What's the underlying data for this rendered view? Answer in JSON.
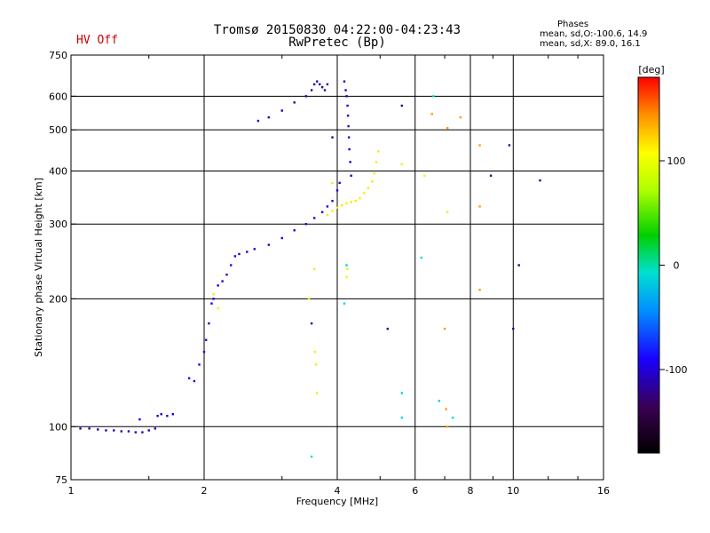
{
  "status": {
    "hv": "HV Off"
  },
  "header": {
    "title_line1": "Tromsø 20150830 04:22:00-04:23:43",
    "title_line2": "RwPretec (Bp)"
  },
  "phases": {
    "title": "Phases",
    "line1": "mean, sd,O:-100.6, 14.9",
    "line2": "mean, sd,X:  89.0, 16.1"
  },
  "colorbar": {
    "unit": "[deg]",
    "ticks": [
      100,
      0,
      -100
    ],
    "range": [
      -180,
      180
    ]
  },
  "chart_data": {
    "type": "scatter",
    "xlabel": "Frequency [MHz]",
    "ylabel": "Stationary phase Virtual Height [km]",
    "x_scale": "log2",
    "y_scale": "log",
    "xlim": [
      1,
      16
    ],
    "ylim": [
      75,
      750
    ],
    "x_ticks": [
      1,
      2,
      4,
      6,
      8,
      10,
      16
    ],
    "y_ticks": [
      75,
      100,
      200,
      300,
      400,
      500,
      600,
      750
    ],
    "grid": true,
    "color_meaning": "phase [deg]",
    "series": [
      {
        "values": [
          [
            1.05,
            99
          ],
          [
            1.1,
            99
          ],
          [
            1.15,
            98.5
          ],
          [
            1.2,
            98
          ],
          [
            1.25,
            98
          ],
          [
            1.3,
            97.5
          ],
          [
            1.35,
            97.5
          ],
          [
            1.4,
            97
          ],
          [
            1.45,
            97
          ],
          [
            1.5,
            98
          ],
          [
            1.55,
            99
          ],
          [
            1.57,
            106
          ],
          [
            1.6,
            107
          ],
          [
            1.65,
            106
          ],
          [
            1.7,
            107
          ]
        ],
        "phase": -110
      },
      {
        "values": [
          [
            1.43,
            104
          ],
          [
            1.85,
            130
          ],
          [
            1.9,
            128
          ],
          [
            1.95,
            140
          ],
          [
            2.0,
            150
          ],
          [
            2.02,
            160
          ],
          [
            2.05,
            175
          ],
          [
            2.08,
            195
          ],
          [
            2.1,
            200
          ],
          [
            2.15,
            215
          ],
          [
            2.2,
            220
          ],
          [
            2.25,
            228
          ],
          [
            2.3,
            240
          ],
          [
            2.35,
            252
          ],
          [
            2.4,
            255
          ],
          [
            2.5,
            258
          ],
          [
            2.6,
            262
          ],
          [
            2.8,
            268
          ],
          [
            3.0,
            278
          ],
          [
            3.2,
            290
          ],
          [
            3.4,
            300
          ],
          [
            3.55,
            310
          ],
          [
            3.7,
            320
          ],
          [
            3.8,
            330
          ],
          [
            3.9,
            340
          ],
          [
            4.0,
            360
          ],
          [
            4.05,
            375
          ]
        ],
        "phase": -100
      },
      {
        "values": [
          [
            2.65,
            525
          ],
          [
            2.8,
            535
          ],
          [
            3.0,
            555
          ],
          [
            3.2,
            580
          ],
          [
            3.4,
            600
          ],
          [
            3.5,
            620
          ],
          [
            3.55,
            640
          ],
          [
            3.6,
            650
          ],
          [
            3.65,
            640
          ],
          [
            3.7,
            630
          ],
          [
            3.75,
            620
          ],
          [
            3.8,
            640
          ]
        ],
        "phase": -115
      },
      {
        "values": [
          [
            4.15,
            650
          ],
          [
            4.18,
            620
          ],
          [
            4.2,
            600
          ],
          [
            4.22,
            570
          ],
          [
            4.23,
            540
          ],
          [
            4.24,
            510
          ],
          [
            4.25,
            480
          ],
          [
            4.26,
            450
          ],
          [
            4.28,
            420
          ],
          [
            4.3,
            390
          ]
        ],
        "phase": -108
      },
      {
        "values": [
          [
            3.8,
            315
          ],
          [
            3.9,
            322
          ],
          [
            4.0,
            328
          ],
          [
            4.1,
            332
          ],
          [
            4.2,
            336
          ],
          [
            4.3,
            338
          ],
          [
            4.4,
            340
          ],
          [
            4.5,
            345
          ],
          [
            4.6,
            355
          ],
          [
            4.7,
            365
          ],
          [
            4.8,
            378
          ],
          [
            4.85,
            395
          ],
          [
            4.9,
            420
          ],
          [
            4.95,
            445
          ]
        ],
        "phase": 115
      },
      {
        "values": [
          [
            3.55,
            235
          ],
          [
            3.56,
            150
          ],
          [
            3.58,
            140
          ],
          [
            3.6,
            120
          ],
          [
            4.2,
            225
          ],
          [
            4.22,
            235
          ],
          [
            5.6,
            415
          ],
          [
            6.3,
            390
          ],
          [
            7.1,
            320
          ],
          [
            2.1,
            205
          ],
          [
            2.15,
            190
          ],
          [
            3.45,
            200
          ],
          [
            3.9,
            375
          ]
        ],
        "phase": 90
      },
      {
        "values": [
          [
            6.55,
            545
          ],
          [
            7.1,
            505
          ],
          [
            7.6,
            535
          ],
          [
            8.4,
            460
          ],
          [
            8.4,
            330
          ],
          [
            8.4,
            210
          ],
          [
            7.0,
            170
          ],
          [
            7.05,
            110
          ],
          [
            7.1,
            100
          ]
        ],
        "phase": 140
      },
      {
        "values": [
          [
            6.2,
            250
          ],
          [
            6.6,
            600
          ],
          [
            4.2,
            240
          ],
          [
            4.15,
            195
          ],
          [
            5.6,
            120
          ],
          [
            5.6,
            105
          ],
          [
            6.8,
            115
          ],
          [
            7.3,
            105
          ],
          [
            3.5,
            85
          ]
        ],
        "phase": -10
      },
      {
        "values": [
          [
            3.5,
            175
          ],
          [
            5.2,
            170
          ],
          [
            9.8,
            460
          ],
          [
            10.0,
            170
          ],
          [
            10.3,
            240
          ],
          [
            11.5,
            380
          ],
          [
            8.9,
            390
          ],
          [
            5.6,
            570
          ],
          [
            3.9,
            480
          ]
        ],
        "phase": -120
      }
    ]
  }
}
